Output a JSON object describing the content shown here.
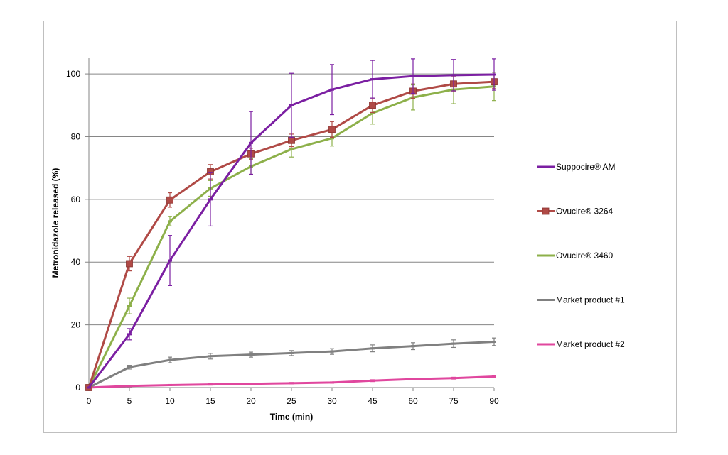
{
  "chart_data": {
    "type": "line",
    "title": "",
    "xlabel": "Time (min)",
    "ylabel": "Metronidazole released (%)",
    "categories": [
      "0",
      "5",
      "10",
      "15",
      "20",
      "25",
      "30",
      "45",
      "60",
      "75",
      "90"
    ],
    "ylim": [
      0,
      105
    ],
    "yticks": [
      0,
      20,
      40,
      60,
      80,
      100
    ],
    "grid": "horizontal",
    "legend_position": "right",
    "series": [
      {
        "name": "Suppocire® AM",
        "color": "#7b1fa2",
        "marker": "dash",
        "values": [
          0,
          17,
          40.5,
          60,
          78,
          90,
          95,
          98.3,
          99.3,
          99.6,
          99.8
        ],
        "errors": [
          0,
          1.8,
          8,
          8.5,
          10,
          10.2,
          8,
          6,
          5.5,
          5,
          5
        ]
      },
      {
        "name": "Ovucire® 3264",
        "color": "#b04a46",
        "marker": "square",
        "values": [
          0,
          39.5,
          59.8,
          68.8,
          74.5,
          78.8,
          82.3,
          90,
          94.5,
          96.8,
          97.5
        ],
        "errors": [
          0,
          2.3,
          2.3,
          2.3,
          1.8,
          2,
          2.5,
          2.3,
          2.3,
          2.5,
          2.2
        ]
      },
      {
        "name": "Ovucire® 3460",
        "color": "#8db04a",
        "marker": "dash",
        "values": [
          0,
          26,
          53,
          63.5,
          70.5,
          76,
          79.5,
          87.5,
          92.5,
          95,
          96
        ],
        "errors": [
          0,
          2.5,
          1.5,
          2.5,
          2.5,
          2.5,
          2.5,
          3.5,
          4,
          4.5,
          4.5
        ]
      },
      {
        "name": "Market product #1",
        "color": "#808080",
        "marker": "dash",
        "values": [
          0,
          6.5,
          8.8,
          10,
          10.5,
          11,
          11.5,
          12.5,
          13.2,
          14,
          14.6
        ],
        "errors": [
          0,
          0.6,
          0.9,
          0.9,
          0.8,
          0.8,
          0.9,
          1.1,
          1.1,
          1.2,
          1.2
        ]
      },
      {
        "name": "Market product #2",
        "color": "#e0479e",
        "marker": "dash",
        "values": [
          0,
          0.5,
          0.8,
          1,
          1.2,
          1.4,
          1.6,
          2.2,
          2.7,
          3,
          3.5
        ],
        "errors": [
          0,
          0.2,
          0.2,
          0.2,
          0.2,
          0.2,
          0.2,
          0.3,
          0.3,
          0.3,
          0.4
        ]
      }
    ]
  }
}
